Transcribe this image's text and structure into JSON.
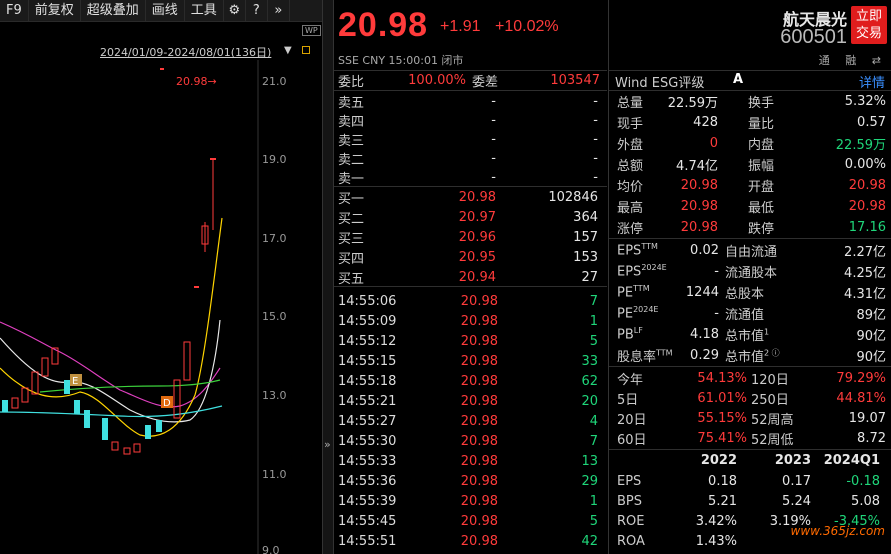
{
  "toolbar": {
    "f9": "F9",
    "adj": "前复权",
    "overlay": "超级叠加",
    "draw": "画线",
    "tools": "工具",
    "gear": "⚙",
    "help": "?",
    "more": "»",
    "range": "2024/01/09-2024/08/01(136日)",
    "wp": "WP"
  },
  "chart": {
    "last_label": "20.98→",
    "yaxis": [
      "21.0",
      "19.0",
      "17.0",
      "15.0",
      "13.0",
      "11.0",
      "9.0"
    ],
    "markers": [
      "E",
      "D"
    ]
  },
  "quote": {
    "price": "20.98",
    "change": "+1.91",
    "pct": "+10.02%",
    "exch": "SSE  CNY  15:00:01  闭市"
  },
  "book": {
    "weibi_label": "委比",
    "weibi": "100.00%",
    "weicha_label": "委差",
    "weicha": "103547",
    "sells": [
      {
        "l": "卖五",
        "p": "-",
        "v": "-"
      },
      {
        "l": "卖四",
        "p": "-",
        "v": "-"
      },
      {
        "l": "卖三",
        "p": "-",
        "v": "-"
      },
      {
        "l": "卖二",
        "p": "-",
        "v": "-"
      },
      {
        "l": "卖一",
        "p": "-",
        "v": "-"
      }
    ],
    "buys": [
      {
        "l": "买一",
        "p": "20.98",
        "v": "102846"
      },
      {
        "l": "买二",
        "p": "20.97",
        "v": "364"
      },
      {
        "l": "买三",
        "p": "20.96",
        "v": "157"
      },
      {
        "l": "买四",
        "p": "20.95",
        "v": "153"
      },
      {
        "l": "买五",
        "p": "20.94",
        "v": "27"
      }
    ]
  },
  "ticks": [
    [
      "14:55:06",
      "20.98",
      "7"
    ],
    [
      "14:55:09",
      "20.98",
      "1"
    ],
    [
      "14:55:12",
      "20.98",
      "5"
    ],
    [
      "14:55:15",
      "20.98",
      "33"
    ],
    [
      "14:55:18",
      "20.98",
      "62"
    ],
    [
      "14:55:21",
      "20.98",
      "20"
    ],
    [
      "14:55:27",
      "20.98",
      "4"
    ],
    [
      "14:55:30",
      "20.98",
      "7"
    ],
    [
      "14:55:33",
      "20.98",
      "13"
    ],
    [
      "14:55:36",
      "20.98",
      "29"
    ],
    [
      "14:55:39",
      "20.98",
      "1"
    ],
    [
      "14:55:45",
      "20.98",
      "5"
    ],
    [
      "14:55:51",
      "20.98",
      "42"
    ]
  ],
  "right": {
    "name": "航天晨光",
    "code": "600501",
    "trade": "立即交易",
    "trade1": "立即",
    "trade2": "交易",
    "icons": "通 融 ⇄",
    "esg_label": "Wind ESG评级",
    "esg": "A",
    "detail": "详情",
    "stats": [
      [
        "总量",
        "22.59万",
        "换手",
        "5.32%",
        "w",
        "w"
      ],
      [
        "现手",
        "428",
        "量比",
        "0.57",
        "w",
        "w"
      ],
      [
        "外盘",
        "0",
        "内盘",
        "22.59万",
        "r",
        "g"
      ],
      [
        "总额",
        "4.74亿",
        "振幅",
        "0.00%",
        "w",
        "w"
      ],
      [
        "均价",
        "20.98",
        "开盘",
        "20.98",
        "r",
        "r"
      ],
      [
        "最高",
        "20.98",
        "最低",
        "20.98",
        "r",
        "r"
      ],
      [
        "涨停",
        "20.98",
        "跌停",
        "17.16",
        "r",
        "g"
      ]
    ],
    "fund": [
      [
        "EPS",
        "TTM",
        "0.02",
        "自由流通",
        "",
        "2.27亿"
      ],
      [
        "EPS",
        "2024E",
        "-",
        "流通股本",
        "",
        "4.25亿"
      ],
      [
        "PE",
        "TTM",
        "1244",
        "总股本",
        "",
        "4.31亿"
      ],
      [
        "PE",
        "2024E",
        "-",
        "流通值",
        "",
        "89亿"
      ],
      [
        "PB",
        "LF",
        "4.18",
        "总市值",
        "1",
        "90亿"
      ],
      [
        "股息率",
        "TTM",
        "0.29",
        "总市值",
        "2 ⓘ",
        "90亿"
      ]
    ],
    "perf": [
      [
        "今年",
        "54.13%",
        "120日",
        "79.29%",
        "r",
        "r"
      ],
      [
        "5日",
        "61.01%",
        "250日",
        "44.81%",
        "r",
        "r"
      ],
      [
        "20日",
        "55.15%",
        "52周高",
        "19.07",
        "r",
        "w"
      ],
      [
        "60日",
        "75.41%",
        "52周低",
        "8.72",
        "r",
        "w"
      ]
    ],
    "years": [
      "2022",
      "2023",
      "2024Q1"
    ],
    "fin": [
      [
        "EPS",
        "0.18",
        "0.17",
        "-0.18"
      ],
      [
        "BPS",
        "5.21",
        "5.24",
        "5.08"
      ],
      [
        "ROE",
        "3.42%",
        "3.19%",
        "-3.45%"
      ],
      [
        "ROA",
        "1.43%",
        "",
        ""
      ]
    ],
    "watermark": "www.365jz.com"
  }
}
